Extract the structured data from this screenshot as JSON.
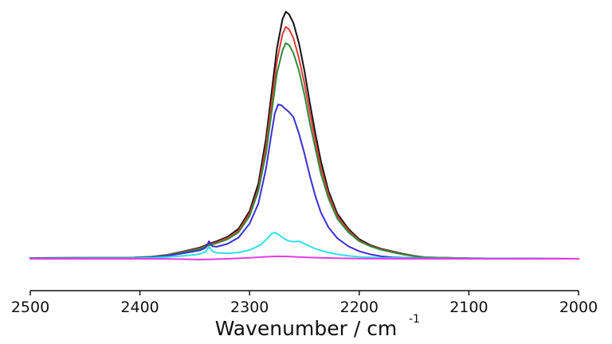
{
  "chart_data": {
    "type": "line",
    "xlabel": "Wavenumber / cm",
    "xlabel_superscript": "-1",
    "xlim": [
      2500,
      2000
    ],
    "x_reversed": true,
    "ylim": [
      0,
      1
    ],
    "x_ticks": [
      2500,
      2400,
      2300,
      2200,
      2100,
      2000
    ],
    "y_axis_shown": false,
    "grid": false,
    "legend": "none",
    "series": [
      {
        "color": "#111111",
        "values": [
          [
            2500,
            0.003
          ],
          [
            2450,
            0.004
          ],
          [
            2410,
            0.004
          ],
          [
            2390,
            0.008
          ],
          [
            2375,
            0.016
          ],
          [
            2360,
            0.03
          ],
          [
            2345,
            0.045
          ],
          [
            2338,
            0.058
          ],
          [
            2330,
            0.07
          ],
          [
            2320,
            0.088
          ],
          [
            2310,
            0.12
          ],
          [
            2300,
            0.19
          ],
          [
            2292,
            0.3
          ],
          [
            2285,
            0.48
          ],
          [
            2280,
            0.66
          ],
          [
            2275,
            0.84
          ],
          [
            2270,
            0.955
          ],
          [
            2267,
            0.985
          ],
          [
            2264,
            0.975
          ],
          [
            2260,
            0.94
          ],
          [
            2255,
            0.86
          ],
          [
            2250,
            0.75
          ],
          [
            2245,
            0.62
          ],
          [
            2240,
            0.5
          ],
          [
            2235,
            0.39
          ],
          [
            2228,
            0.27
          ],
          [
            2220,
            0.18
          ],
          [
            2210,
            0.12
          ],
          [
            2200,
            0.078
          ],
          [
            2190,
            0.055
          ],
          [
            2180,
            0.04
          ],
          [
            2170,
            0.03
          ],
          [
            2160,
            0.02
          ],
          [
            2150,
            0.012
          ],
          [
            2140,
            0.006
          ],
          [
            2100,
            0.002
          ],
          [
            2050,
            0.001
          ],
          [
            2000,
            0.0
          ]
        ]
      },
      {
        "color": "#e53935",
        "values": [
          [
            2500,
            0.003
          ],
          [
            2450,
            0.004
          ],
          [
            2410,
            0.004
          ],
          [
            2390,
            0.008
          ],
          [
            2375,
            0.015
          ],
          [
            2360,
            0.028
          ],
          [
            2345,
            0.042
          ],
          [
            2338,
            0.055
          ],
          [
            2330,
            0.066
          ],
          [
            2320,
            0.083
          ],
          [
            2310,
            0.113
          ],
          [
            2300,
            0.18
          ],
          [
            2292,
            0.28
          ],
          [
            2285,
            0.45
          ],
          [
            2280,
            0.62
          ],
          [
            2275,
            0.79
          ],
          [
            2270,
            0.895
          ],
          [
            2267,
            0.925
          ],
          [
            2264,
            0.915
          ],
          [
            2260,
            0.88
          ],
          [
            2255,
            0.8
          ],
          [
            2250,
            0.7
          ],
          [
            2245,
            0.58
          ],
          [
            2240,
            0.47
          ],
          [
            2235,
            0.365
          ],
          [
            2228,
            0.255
          ],
          [
            2220,
            0.17
          ],
          [
            2210,
            0.113
          ],
          [
            2200,
            0.073
          ],
          [
            2190,
            0.052
          ],
          [
            2180,
            0.038
          ],
          [
            2170,
            0.028
          ],
          [
            2160,
            0.018
          ],
          [
            2150,
            0.011
          ],
          [
            2140,
            0.006
          ],
          [
            2100,
            0.002
          ],
          [
            2050,
            0.001
          ],
          [
            2000,
            0.0
          ]
        ]
      },
      {
        "color": "#2e8b3a",
        "values": [
          [
            2500,
            0.003
          ],
          [
            2450,
            0.004
          ],
          [
            2410,
            0.004
          ],
          [
            2390,
            0.008
          ],
          [
            2375,
            0.014
          ],
          [
            2360,
            0.026
          ],
          [
            2345,
            0.04
          ],
          [
            2338,
            0.052
          ],
          [
            2330,
            0.062
          ],
          [
            2320,
            0.078
          ],
          [
            2310,
            0.106
          ],
          [
            2300,
            0.17
          ],
          [
            2292,
            0.27
          ],
          [
            2285,
            0.42
          ],
          [
            2280,
            0.58
          ],
          [
            2275,
            0.74
          ],
          [
            2270,
            0.83
          ],
          [
            2267,
            0.86
          ],
          [
            2264,
            0.852
          ],
          [
            2260,
            0.82
          ],
          [
            2255,
            0.75
          ],
          [
            2250,
            0.655
          ],
          [
            2245,
            0.54
          ],
          [
            2240,
            0.44
          ],
          [
            2235,
            0.34
          ],
          [
            2228,
            0.24
          ],
          [
            2220,
            0.16
          ],
          [
            2210,
            0.106
          ],
          [
            2200,
            0.07
          ],
          [
            2190,
            0.05
          ],
          [
            2180,
            0.036
          ],
          [
            2170,
            0.026
          ],
          [
            2160,
            0.017
          ],
          [
            2150,
            0.01
          ],
          [
            2140,
            0.005
          ],
          [
            2100,
            0.002
          ],
          [
            2050,
            0.001
          ],
          [
            2000,
            0.0
          ]
        ]
      },
      {
        "color": "#3a2fd6",
        "values": [
          [
            2500,
            0.002
          ],
          [
            2450,
            0.003
          ],
          [
            2410,
            0.003
          ],
          [
            2390,
            0.006
          ],
          [
            2375,
            0.012
          ],
          [
            2360,
            0.022
          ],
          [
            2345,
            0.034
          ],
          [
            2340,
            0.044
          ],
          [
            2337,
            0.07
          ],
          [
            2334,
            0.05
          ],
          [
            2330,
            0.048
          ],
          [
            2320,
            0.06
          ],
          [
            2310,
            0.085
          ],
          [
            2300,
            0.14
          ],
          [
            2292,
            0.22
          ],
          [
            2285,
            0.36
          ],
          [
            2280,
            0.5
          ],
          [
            2277,
            0.58
          ],
          [
            2274,
            0.615
          ],
          [
            2271,
            0.612
          ],
          [
            2268,
            0.6
          ],
          [
            2264,
            0.585
          ],
          [
            2260,
            0.565
          ],
          [
            2255,
            0.5
          ],
          [
            2250,
            0.42
          ],
          [
            2245,
            0.33
          ],
          [
            2240,
            0.25
          ],
          [
            2235,
            0.185
          ],
          [
            2228,
            0.125
          ],
          [
            2220,
            0.082
          ],
          [
            2210,
            0.05
          ],
          [
            2200,
            0.03
          ],
          [
            2190,
            0.018
          ],
          [
            2180,
            0.01
          ],
          [
            2170,
            0.006
          ],
          [
            2150,
            0.003
          ],
          [
            2100,
            0.001
          ],
          [
            2000,
            0.0
          ]
        ]
      },
      {
        "color": "#2fe0e8",
        "values": [
          [
            2500,
            0.001
          ],
          [
            2450,
            0.002
          ],
          [
            2410,
            0.002
          ],
          [
            2390,
            0.004
          ],
          [
            2375,
            0.007
          ],
          [
            2360,
            0.012
          ],
          [
            2350,
            0.016
          ],
          [
            2345,
            0.02
          ],
          [
            2340,
            0.028
          ],
          [
            2337,
            0.048
          ],
          [
            2334,
            0.03
          ],
          [
            2330,
            0.024
          ],
          [
            2320,
            0.022
          ],
          [
            2310,
            0.025
          ],
          [
            2300,
            0.035
          ],
          [
            2290,
            0.055
          ],
          [
            2284,
            0.08
          ],
          [
            2280,
            0.1
          ],
          [
            2277,
            0.105
          ],
          [
            2274,
            0.098
          ],
          [
            2270,
            0.085
          ],
          [
            2265,
            0.072
          ],
          [
            2260,
            0.068
          ],
          [
            2255,
            0.07
          ],
          [
            2250,
            0.06
          ],
          [
            2245,
            0.05
          ],
          [
            2240,
            0.04
          ],
          [
            2230,
            0.027
          ],
          [
            2220,
            0.018
          ],
          [
            2210,
            0.012
          ],
          [
            2200,
            0.008
          ],
          [
            2180,
            0.004
          ],
          [
            2150,
            0.002
          ],
          [
            2100,
            0.001
          ],
          [
            2000,
            0.0
          ]
        ]
      },
      {
        "color": "#e63be6",
        "values": [
          [
            2500,
            0.0
          ],
          [
            2450,
            0.0
          ],
          [
            2400,
            0.0
          ],
          [
            2380,
            0.0
          ],
          [
            2355,
            -0.002
          ],
          [
            2345,
            -0.003
          ],
          [
            2335,
            -0.002
          ],
          [
            2320,
            0.0
          ],
          [
            2300,
            0.004
          ],
          [
            2285,
            0.008
          ],
          [
            2275,
            0.01
          ],
          [
            2265,
            0.009
          ],
          [
            2250,
            0.006
          ],
          [
            2230,
            0.003
          ],
          [
            2200,
            0.001
          ],
          [
            2150,
            0.0
          ],
          [
            2100,
            0.0
          ],
          [
            2050,
            0.0
          ],
          [
            2000,
            0.0
          ]
        ]
      }
    ]
  }
}
